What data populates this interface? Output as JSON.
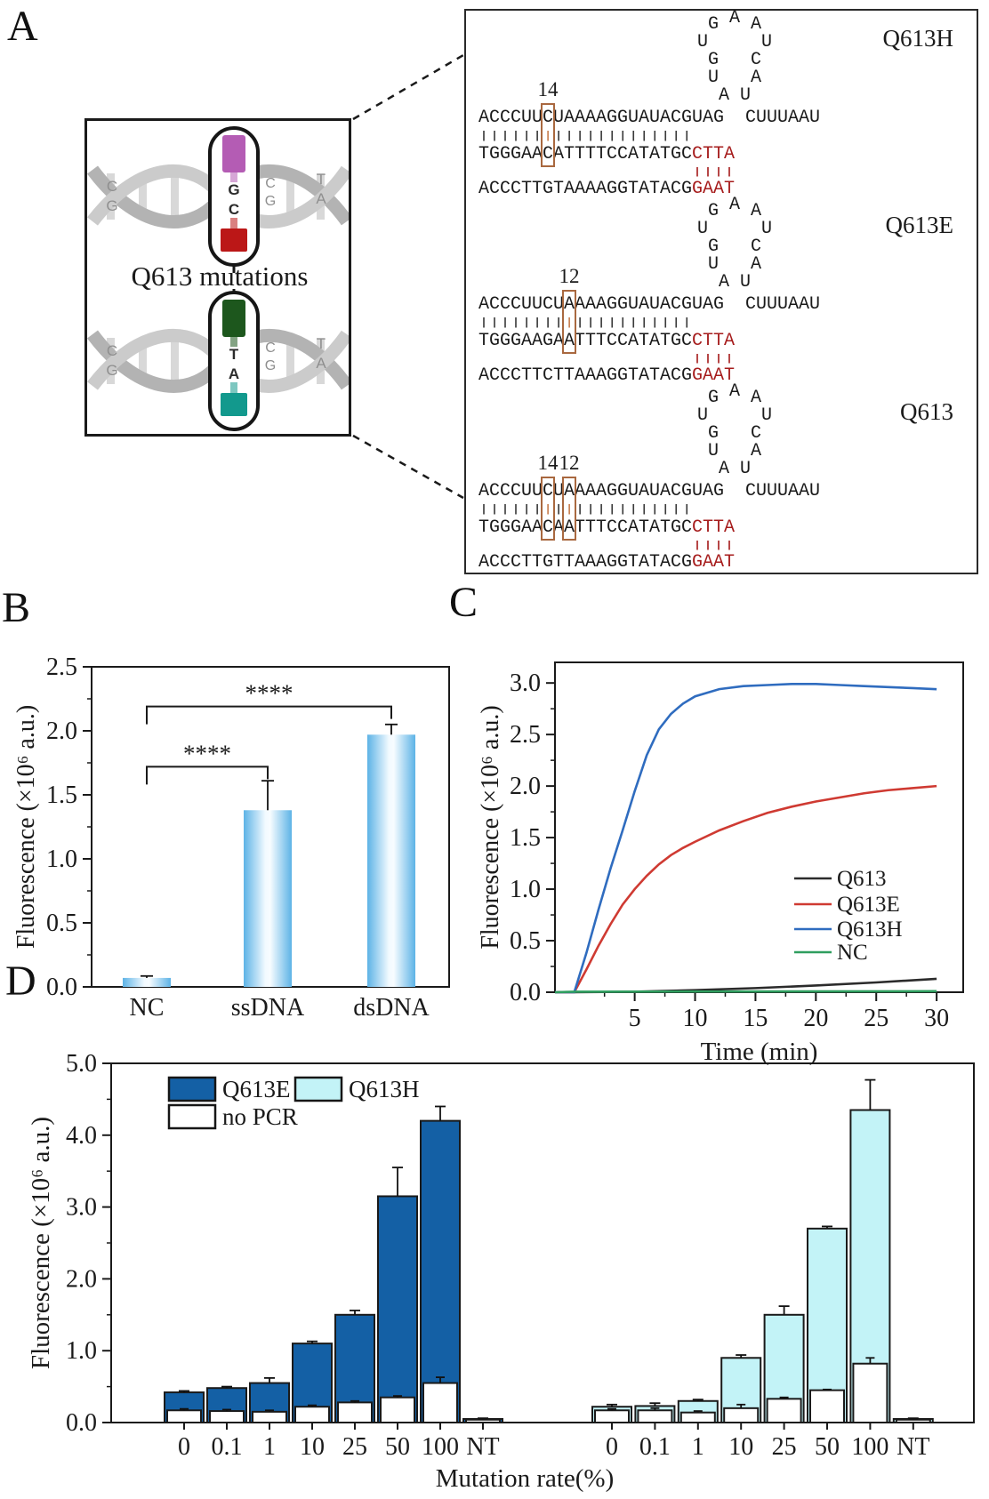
{
  "panel_labels": {
    "a": "A",
    "b": "B",
    "c": "C",
    "d": "D"
  },
  "panel_a": {
    "title": "Q613 mutations",
    "colors": {
      "ribbon_dark": "#b3b3b3",
      "ribbon_light": "#cbcbcb",
      "rung": "#d8d8d8",
      "letter_gray": "#8f8f8f",
      "magenta_bar": "#b45cb4",
      "red_bar": "#bb1717",
      "green_bar": "#1d571d",
      "teal_bar": "#12998d",
      "mut_box": "#a9683f",
      "seq_red": "#a61c1c"
    },
    "helices": [
      {
        "circled": [
          "G",
          "C"
        ],
        "left_pair": [
          "C",
          "G"
        ],
        "mid_pair": [
          "C",
          "G"
        ],
        "right_pair": [
          "T",
          "A"
        ],
        "bar_top": "magenta_bar",
        "bar_bottom": "red_bar"
      },
      {
        "circled": [
          "T",
          "A"
        ],
        "left_pair": [
          "C",
          "G"
        ],
        "mid_pair": [
          "C",
          "G"
        ],
        "right_pair": [
          "T",
          "A"
        ],
        "bar_top": "green_bar",
        "bar_bottom": "teal_bar"
      }
    ],
    "structures": [
      {
        "name": "Q613H",
        "boxes": [
          {
            "label": "14",
            "col": 6
          }
        ],
        "rna": "ACCCUUCUAAAAGGUAUACGUAG",
        "rna_tail": "CUUUAAU",
        "loop": {
          "apex": "A",
          "left": [
            "G",
            "U",
            "G",
            "U",
            "A"
          ],
          "right": [
            "A",
            "U",
            "C",
            "A",
            "U"
          ]
        },
        "pair_count": 20,
        "dna": "TGGGAACATTTTCCATATGC",
        "dna_red": "CTTA",
        "ssdna": "ACCCTTGTAAAAGGTATACG",
        "ssdna_red": "GAAT",
        "red_pair_count": 4
      },
      {
        "name": "Q613E",
        "boxes": [
          {
            "label": "12",
            "col": 8
          }
        ],
        "rna": "ACCCUUCUAAAAGGUAUACGUAG",
        "rna_tail": "CUUUAAU",
        "loop": {
          "apex": "A",
          "left": [
            "G",
            "U",
            "G",
            "U",
            "A"
          ],
          "right": [
            "A",
            "U",
            "C",
            "A",
            "U"
          ]
        },
        "pair_count": 20,
        "dna": "TGGGAAGAATTTCCATATGC",
        "dna_red": "CTTA",
        "ssdna": "ACCCTTCTTAAAGGTATACG",
        "ssdna_red": "GAAT",
        "red_pair_count": 4
      },
      {
        "name": "Q613",
        "boxes": [
          {
            "label": "14",
            "col": 6
          },
          {
            "label": "12",
            "col": 8
          }
        ],
        "rna": "ACCCUUCUAAAAGGUAUACGUAG",
        "rna_tail": "CUUUAAU",
        "loop": {
          "apex": "A",
          "left": [
            "G",
            "U",
            "G",
            "U",
            "A"
          ],
          "right": [
            "A",
            "U",
            "C",
            "A",
            "U"
          ]
        },
        "pair_count": 20,
        "dna": "TGGGAACAATTTCCATATGC",
        "dna_red": "CTTA",
        "ssdna": "ACCCTTGTTAAAGGTATACG",
        "ssdna_red": "GAAT",
        "red_pair_count": 4
      }
    ]
  },
  "chart_data": [
    {
      "id": "panel-b",
      "type": "bar",
      "ylabel": "Fluorescence (×10⁶ a.u.)",
      "categories": [
        "NC",
        "ssDNA",
        "dsDNA"
      ],
      "values": [
        0.07,
        1.38,
        1.97
      ],
      "errors": [
        0.015,
        0.23,
        0.08
      ],
      "ylim": [
        0,
        2.5
      ],
      "ytick_step": 0.5,
      "yminor_step": 0.25,
      "bar_gradient": [
        "#5db3e6",
        "#f7fcff"
      ],
      "significance": [
        {
          "a": 0,
          "b": 1,
          "label": "****",
          "y": 1.72
        },
        {
          "a": 0,
          "b": 2,
          "label": "****",
          "y": 2.19
        }
      ]
    },
    {
      "id": "panel-c",
      "type": "line",
      "xlabel": "Time (min)",
      "ylabel": "Fluorescence (×10⁶ a.u.)",
      "xlim": [
        -1.6,
        32.2
      ],
      "xticks": [
        5,
        10,
        15,
        20,
        25,
        30
      ],
      "xminor_step": 2.5,
      "ylim": [
        0,
        3.2
      ],
      "ytick_step": 0.5,
      "yminor_step": 0.25,
      "ytick_max": 3.0,
      "series": [
        {
          "name": "Q613",
          "color": "#2b2b2b",
          "x": [
            0,
            5,
            10,
            15,
            20,
            25,
            30
          ],
          "y": [
            0,
            0.005,
            0.02,
            0.04,
            0.065,
            0.095,
            0.13
          ]
        },
        {
          "name": "Q613E",
          "color": "#cf3a32",
          "x": [
            0,
            1,
            2,
            3,
            4,
            5,
            6,
            7,
            8,
            9,
            10,
            12,
            14,
            16,
            18,
            20,
            22,
            24,
            26,
            28,
            30
          ],
          "y": [
            0,
            0.22,
            0.45,
            0.66,
            0.85,
            1.0,
            1.13,
            1.24,
            1.33,
            1.4,
            1.46,
            1.57,
            1.66,
            1.74,
            1.8,
            1.85,
            1.89,
            1.93,
            1.96,
            1.98,
            2.0
          ]
        },
        {
          "name": "Q613H",
          "color": "#2f6cbf",
          "x": [
            0,
            1,
            2,
            3,
            4,
            5,
            6,
            7,
            8,
            9,
            10,
            12,
            14,
            16,
            18,
            20,
            22,
            24,
            26,
            28,
            30
          ],
          "y": [
            0,
            0.38,
            0.8,
            1.2,
            1.57,
            1.95,
            2.3,
            2.55,
            2.7,
            2.8,
            2.87,
            2.94,
            2.97,
            2.98,
            2.99,
            2.99,
            2.98,
            2.97,
            2.96,
            2.95,
            2.94
          ]
        },
        {
          "name": "NC",
          "color": "#2f9e5f",
          "x": [
            0,
            30
          ],
          "y": [
            0.005,
            0.01
          ]
        }
      ],
      "legend_position": "inside-right-bottom"
    },
    {
      "id": "panel-d",
      "type": "grouped-bar",
      "xlabel": "Mutation rate(%)",
      "ylabel": "Fluorescence (×10⁶ a.u.)",
      "categories": [
        "0",
        "0.1",
        "1",
        "10",
        "25",
        "50",
        "100",
        "NT"
      ],
      "ylim": [
        0,
        5
      ],
      "ytick_step": 1,
      "yminor_step": 0.5,
      "groups": [
        {
          "name": "Q613E",
          "fill": "#1460a5",
          "values": [
            0.42,
            0.48,
            0.55,
            1.1,
            1.5,
            3.15,
            4.2,
            0.05
          ],
          "errors": [
            0.02,
            0.02,
            0.07,
            0.03,
            0.06,
            0.4,
            0.2,
            0.01
          ],
          "no_pcr_values": [
            0.17,
            0.16,
            0.15,
            0.22,
            0.28,
            0.35,
            0.55,
            0.04
          ],
          "no_pcr_errors": [
            0.02,
            0.02,
            0.02,
            0.02,
            0.02,
            0.02,
            0.08,
            0.01
          ]
        },
        {
          "name": "Q613H",
          "fill": "#c3f3f7",
          "values": [
            0.22,
            0.23,
            0.3,
            0.9,
            1.5,
            2.7,
            4.35,
            0.05
          ],
          "errors": [
            0.03,
            0.04,
            0.02,
            0.04,
            0.12,
            0.03,
            0.42,
            0.01
          ],
          "no_pcr_values": [
            0.17,
            0.17,
            0.14,
            0.2,
            0.33,
            0.45,
            0.82,
            0.04
          ],
          "no_pcr_errors": [
            0.02,
            0.03,
            0.02,
            0.05,
            0.02,
            0.01,
            0.08,
            0.01
          ]
        }
      ],
      "no_pcr_label": "no PCR",
      "no_pcr_fill": "#ffffff",
      "legend": [
        "Q613E",
        "Q613H",
        "no PCR"
      ]
    }
  ]
}
